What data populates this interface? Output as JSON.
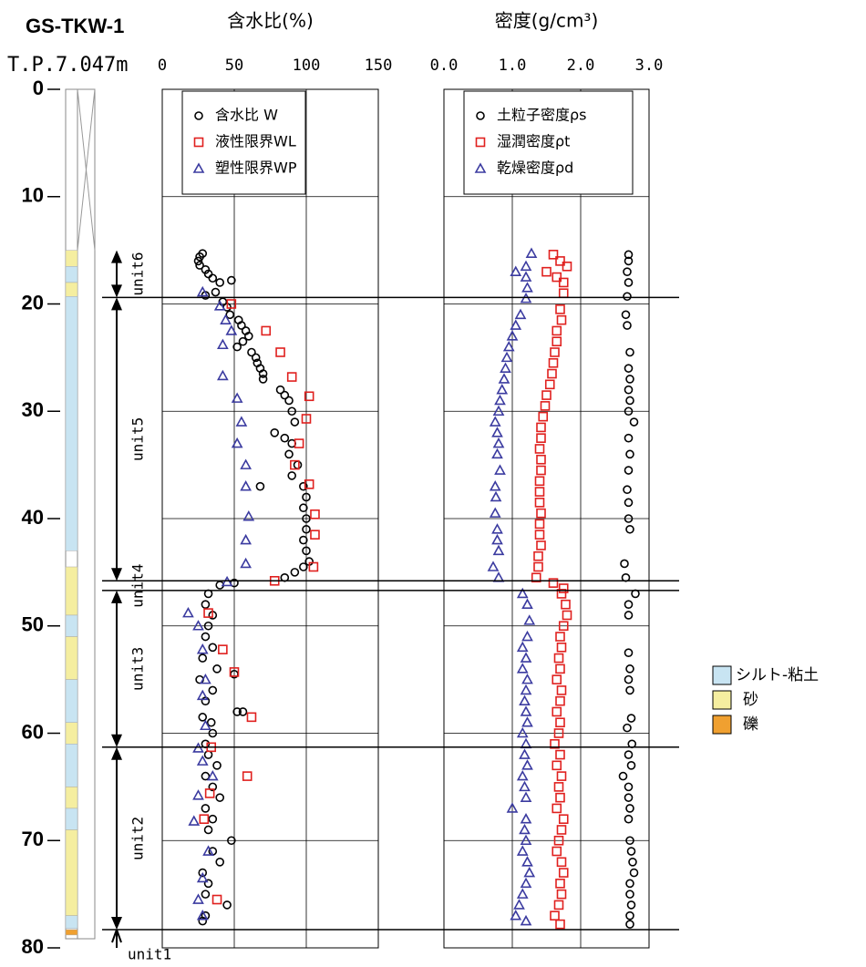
{
  "boring": {
    "name": "GS-TKW-1",
    "elevation": "T.P.7.047m",
    "units": [
      {
        "label": "unit6",
        "top": 15,
        "bottom": 19.4
      },
      {
        "label": "unit5",
        "top": 19.4,
        "bottom": 45.8
      },
      {
        "label": "unit4",
        "top": 45.8,
        "bottom": 46.7
      },
      {
        "label": "unit3",
        "top": 46.7,
        "bottom": 61.3
      },
      {
        "label": "unit2",
        "top": 61.3,
        "bottom": 78.3
      },
      {
        "label": "unit1",
        "top": 78.3
      }
    ],
    "soil_legend": [
      {
        "label": "シルト-粘土",
        "color": "#c8e4f2"
      },
      {
        "label": "砂",
        "color": "#f5eea0"
      },
      {
        "label": "礫",
        "color": "#f0a030"
      }
    ],
    "layers": [
      {
        "top": 15,
        "bottom": 16.5,
        "soil": 1
      },
      {
        "top": 16.5,
        "bottom": 18,
        "soil": 0
      },
      {
        "top": 18,
        "bottom": 19.3,
        "soil": 1
      },
      {
        "top": 19.3,
        "bottom": 43,
        "soil": 0
      },
      {
        "top": 44.5,
        "bottom": 49,
        "soil": 1
      },
      {
        "top": 49,
        "bottom": 51,
        "soil": 0
      },
      {
        "top": 51,
        "bottom": 55,
        "soil": 1
      },
      {
        "top": 55,
        "bottom": 59,
        "soil": 0
      },
      {
        "top": 59,
        "bottom": 61,
        "soil": 1
      },
      {
        "top": 61,
        "bottom": 65,
        "soil": 0
      },
      {
        "top": 65,
        "bottom": 67,
        "soil": 1
      },
      {
        "top": 67,
        "bottom": 69,
        "soil": 0
      },
      {
        "top": 69,
        "bottom": 77,
        "soil": 1
      },
      {
        "top": 77,
        "bottom": 78.2,
        "soil": 0
      },
      {
        "top": 78.3,
        "bottom": 78.8,
        "soil": 2
      }
    ]
  },
  "chart_data": [
    {
      "type": "scatter",
      "title": "含水比(%)",
      "xlim": [
        0,
        150
      ],
      "xticks": [
        0,
        50,
        100,
        150
      ],
      "ylim": [
        0,
        80
      ],
      "yticks": [
        0,
        10,
        20,
        30,
        40,
        50,
        60,
        70,
        80
      ],
      "grid": true,
      "series": [
        {
          "name": "含水比 W",
          "color": "#000000",
          "marker": "circle",
          "x": [
            28,
            26,
            25,
            26,
            30,
            32,
            35,
            40,
            48,
            37,
            30,
            42,
            45,
            47,
            53,
            55,
            58,
            60,
            56,
            52,
            62,
            65,
            66,
            68,
            70,
            70,
            82,
            85,
            88,
            90,
            92,
            78,
            85,
            90,
            88,
            94,
            90,
            68,
            98,
            100,
            98,
            100,
            100,
            98,
            100,
            102,
            98,
            92,
            85,
            50,
            40,
            32,
            30,
            35,
            32,
            30,
            35,
            28,
            38,
            26,
            35,
            30,
            52,
            28,
            34,
            35,
            30,
            32,
            38,
            30,
            35,
            40,
            30,
            35,
            32,
            48,
            35,
            40,
            28,
            32,
            30,
            45,
            30,
            28,
            50,
            56
          ],
          "y": [
            15.3,
            15.6,
            16,
            16.4,
            16.8,
            17.2,
            17.6,
            18,
            17.8,
            18.9,
            19.2,
            19.8,
            20.3,
            21,
            21.5,
            22,
            22.5,
            23,
            23.5,
            24,
            24.5,
            25,
            25.5,
            26,
            26.5,
            27,
            28,
            28.5,
            29,
            30,
            31,
            32,
            32.5,
            33,
            34,
            35,
            36,
            37,
            37,
            38,
            39,
            40,
            41,
            42,
            43,
            44,
            44.5,
            45,
            45.5,
            46,
            46.2,
            47,
            48,
            49,
            50,
            51,
            52,
            53,
            54,
            55,
            56,
            57,
            58,
            58.5,
            59,
            60,
            61,
            62,
            63,
            64,
            65,
            66,
            67,
            68,
            69,
            70,
            71,
            72,
            73,
            74,
            75,
            76,
            77,
            77.5,
            54.5,
            58
          ]
        },
        {
          "name": "液性限界WL",
          "color": "#e0201e",
          "marker": "square",
          "x": [
            48,
            72,
            82,
            90,
            102,
            100,
            95,
            92,
            102,
            106,
            106,
            105,
            78,
            32,
            42,
            50,
            62,
            34,
            59,
            33,
            29,
            38
          ],
          "y": [
            20,
            22.5,
            24.5,
            26.8,
            28.6,
            30.7,
            33,
            35,
            36.8,
            39.6,
            41.5,
            44.5,
            45.8,
            48.8,
            52.2,
            54.3,
            58.5,
            61.3,
            64,
            65.6,
            68,
            75.5
          ]
        },
        {
          "name": "塑性限界WP",
          "color": "#3b3ba0",
          "marker": "triangle",
          "x": [
            28,
            40,
            44,
            48,
            42,
            42,
            52,
            55,
            52,
            58,
            58,
            60,
            58,
            58,
            45,
            18,
            25,
            28,
            30,
            28,
            30,
            25,
            28,
            35,
            25,
            22,
            32,
            28,
            25,
            28
          ],
          "y": [
            18.9,
            20.2,
            21.5,
            22.5,
            23.8,
            26.7,
            28.8,
            31,
            33,
            35,
            37,
            39.8,
            42,
            44.2,
            45.9,
            48.8,
            50,
            52.2,
            55,
            56.5,
            59.3,
            61.4,
            62.6,
            64,
            65.8,
            68.2,
            71,
            73.5,
            75.5,
            77
          ]
        }
      ]
    },
    {
      "type": "scatter",
      "title": "密度(g/cm³)",
      "xlim": [
        0,
        3
      ],
      "xticks": [
        {
          "value": 0,
          "label": "0.0"
        },
        {
          "value": 1,
          "label": "1.0"
        },
        {
          "value": 2,
          "label": "2.0"
        },
        {
          "value": 3,
          "label": "3.0"
        }
      ],
      "ylim": [
        0,
        80
      ],
      "yticks": [
        0,
        10,
        20,
        30,
        40,
        50,
        60,
        70,
        80
      ],
      "grid": true,
      "series": [
        {
          "name": "土粒子密度ρs",
          "color": "#000000",
          "marker": "circle",
          "x": [
            2.7,
            2.7,
            2.68,
            2.7,
            2.68,
            2.66,
            2.68,
            2.72,
            2.7,
            2.72,
            2.7,
            2.72,
            2.7,
            2.78,
            2.7,
            2.72,
            2.7,
            2.68,
            2.7,
            2.7,
            2.72,
            2.64,
            2.66,
            2.8,
            2.7,
            2.7,
            2.7,
            2.72,
            2.7,
            2.72,
            2.74,
            2.68,
            2.75,
            2.7,
            2.74,
            2.62,
            2.7,
            2.7,
            2.72,
            2.7,
            2.72,
            2.74,
            2.76,
            2.78,
            2.72,
            2.72,
            2.74,
            2.72,
            2.72
          ],
          "y": [
            15.4,
            16,
            17,
            18,
            19.3,
            21,
            22,
            24.5,
            26,
            27,
            28,
            29,
            30,
            31,
            32.5,
            34,
            35.5,
            37.3,
            38.5,
            40,
            41,
            44.2,
            45.5,
            47,
            48,
            49,
            52.5,
            54,
            55,
            56,
            58.6,
            59.5,
            61,
            62,
            63,
            64,
            65,
            66,
            67,
            68,
            70,
            71,
            72,
            73,
            74,
            75,
            76,
            77,
            77.8
          ]
        },
        {
          "name": "湿潤密度ρt",
          "color": "#e0201e",
          "marker": "square",
          "x": [
            1.6,
            1.7,
            1.8,
            1.5,
            1.65,
            1.75,
            1.75,
            1.7,
            1.72,
            1.65,
            1.65,
            1.62,
            1.6,
            1.58,
            1.55,
            1.5,
            1.48,
            1.45,
            1.42,
            1.42,
            1.4,
            1.42,
            1.42,
            1.4,
            1.4,
            1.4,
            1.42,
            1.4,
            1.4,
            1.42,
            1.38,
            1.38,
            1.35,
            1.6,
            1.75,
            1.72,
            1.78,
            1.8,
            1.75,
            1.7,
            1.72,
            1.68,
            1.7,
            1.65,
            1.72,
            1.7,
            1.65,
            1.7,
            1.68,
            1.62,
            1.7,
            1.65,
            1.72,
            1.68,
            1.7,
            1.65,
            1.75,
            1.72,
            1.68,
            1.65,
            1.72,
            1.75,
            1.7,
            1.72,
            1.68,
            1.62,
            1.7
          ],
          "y": [
            15.4,
            16,
            16.5,
            17,
            17.5,
            18,
            19,
            20.5,
            21.5,
            22.5,
            23.5,
            24.5,
            25.5,
            26.5,
            27.5,
            28.5,
            29.5,
            30.5,
            31.5,
            32.5,
            33.5,
            34.5,
            35.5,
            36.5,
            37.5,
            38.5,
            39.5,
            40.5,
            41.5,
            42.5,
            43.5,
            44.5,
            45.5,
            46,
            46.5,
            47,
            48,
            49,
            50,
            51,
            52,
            53,
            54,
            55,
            56,
            57,
            58,
            59,
            60,
            61,
            62,
            63,
            64,
            65,
            66,
            67,
            68,
            69,
            70,
            71,
            72,
            73,
            74,
            75,
            76,
            77,
            77.8
          ]
        },
        {
          "name": "乾燥密度ρd",
          "color": "#3b3ba0",
          "marker": "triangle",
          "x": [
            1.28,
            1.2,
            1.05,
            1.2,
            1.22,
            1.2,
            1.12,
            1.05,
            1.0,
            0.95,
            0.92,
            0.9,
            0.88,
            0.85,
            0.82,
            0.8,
            0.75,
            0.78,
            0.8,
            0.78,
            0.82,
            0.75,
            0.76,
            0.75,
            0.78,
            0.78,
            0.8,
            0.72,
            0.8,
            1.15,
            1.22,
            1.25,
            1.22,
            1.15,
            1.2,
            1.15,
            1.22,
            1.2,
            1.18,
            1.2,
            1.22,
            1.15,
            1.2,
            1.18,
            1.22,
            1.15,
            1.18,
            1.2,
            1.0,
            1.2,
            1.18,
            1.2,
            1.15,
            1.22,
            1.25,
            1.2,
            1.15,
            1.1,
            1.05,
            1.2
          ],
          "y": [
            15.3,
            16.5,
            17,
            17.5,
            18.5,
            19.5,
            21,
            22,
            23,
            24,
            25,
            26,
            27,
            28,
            29,
            30,
            31,
            32,
            33,
            34,
            35.5,
            37,
            38,
            39.5,
            41,
            42,
            43,
            44.5,
            45.5,
            47,
            48,
            49.5,
            51,
            52,
            53,
            54,
            55,
            56,
            57,
            58,
            59,
            60,
            61,
            62,
            63,
            64,
            65,
            66,
            67,
            68,
            69,
            70,
            71,
            72,
            73,
            74,
            75,
            76,
            77,
            77.5
          ]
        }
      ]
    }
  ]
}
